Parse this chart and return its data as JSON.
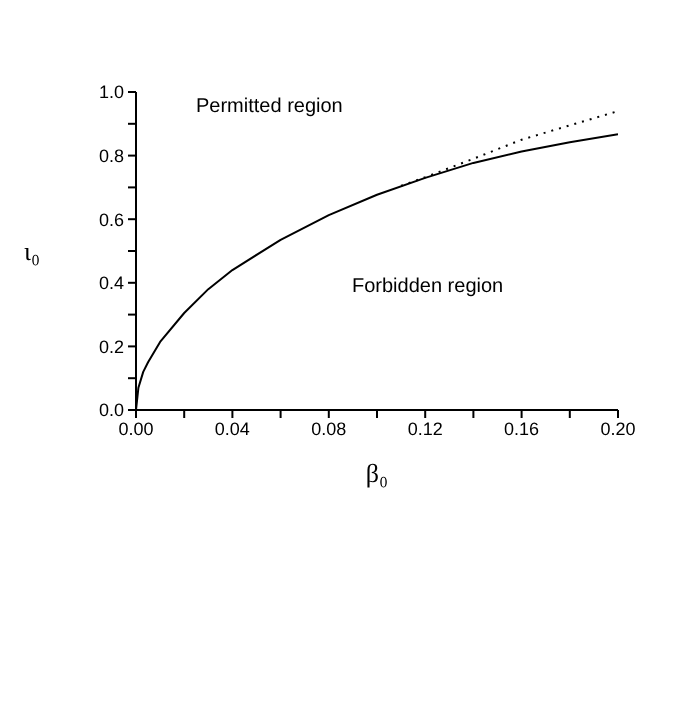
{
  "chart_data": {
    "type": "line",
    "xlabel": "β₀",
    "ylabel": "ι₀",
    "annotations": [
      "Permitted region",
      "Forbidden region"
    ],
    "xlim": [
      0,
      0.2
    ],
    "ylim": [
      0,
      1.0
    ],
    "xticks": [
      {
        "value": 0,
        "label": "0.00"
      },
      {
        "value": 0.02,
        "label": null
      },
      {
        "value": 0.04,
        "label": "0.04"
      },
      {
        "value": 0.06,
        "label": null
      },
      {
        "value": 0.08,
        "label": "0.08"
      },
      {
        "value": 0.1,
        "label": null
      },
      {
        "value": 0.12,
        "label": "0.12"
      },
      {
        "value": 0.14,
        "label": null
      },
      {
        "value": 0.16,
        "label": "0.16"
      },
      {
        "value": 0.18,
        "label": null
      },
      {
        "value": 0.2,
        "label": "0.20"
      }
    ],
    "yticks": [
      {
        "value": 0,
        "label": "0.0"
      },
      {
        "value": 0.1,
        "label": null
      },
      {
        "value": 0.2,
        "label": "0.2"
      },
      {
        "value": 0.3,
        "label": null
      },
      {
        "value": 0.4,
        "label": "0.4"
      },
      {
        "value": 0.5,
        "label": null
      },
      {
        "value": 0.6,
        "label": "0.6"
      },
      {
        "value": 0.7,
        "label": null
      },
      {
        "value": 0.8,
        "label": "0.8"
      },
      {
        "value": 0.9,
        "label": null
      },
      {
        "value": 1.0,
        "label": "1.0"
      }
    ],
    "marker": "none",
    "series": [
      {
        "color": "#000000",
        "line_style": "solid",
        "x": [
          0,
          0.001,
          0.003,
          0.005,
          0.01,
          0.02,
          0.03,
          0.04,
          0.06,
          0.08,
          0.1,
          0.12,
          0.14,
          0.16,
          0.18,
          0.2
        ],
        "values": [
          0,
          0.07,
          0.12,
          0.15,
          0.214,
          0.305,
          0.38,
          0.44,
          0.535,
          0.613,
          0.677,
          0.73,
          0.777,
          0.813,
          0.842,
          0.867
        ]
      },
      {
        "color": "#000000",
        "line_style": "dotted",
        "x": [
          0.11,
          0.12,
          0.14,
          0.16,
          0.18,
          0.2
        ],
        "values": [
          0.705,
          0.732,
          0.79,
          0.85,
          0.895,
          0.94
        ]
      }
    ]
  }
}
